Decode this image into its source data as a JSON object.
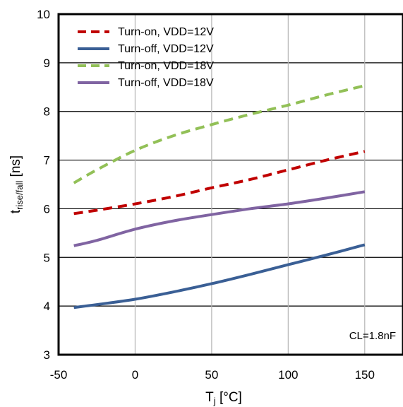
{
  "chart_data": {
    "type": "line",
    "title": "",
    "xlabel": "T",
    "xlabel_sub": "j",
    "xlabel_unit": " [°C]",
    "ylabel": "t",
    "ylabel_sub": "rise/fall",
    "ylabel_unit": " [ns]",
    "xlim": [
      -50,
      175
    ],
    "ylim": [
      3,
      10
    ],
    "xticks": [
      -50,
      0,
      50,
      100,
      150
    ],
    "yticks": [
      3,
      4,
      5,
      6,
      7,
      8,
      9,
      10
    ],
    "grid": true,
    "legend_position": "top-left",
    "annotation": "CL=1.8nF",
    "x": [
      -40,
      -25,
      0,
      25,
      50,
      75,
      100,
      125,
      150
    ],
    "series": [
      {
        "name": "Turn-on, VDD=12V",
        "color": "#c00000",
        "dash": true,
        "values": [
          5.9,
          5.97,
          6.1,
          6.25,
          6.43,
          6.6,
          6.8,
          7.0,
          7.18
        ]
      },
      {
        "name": "Turn-off, VDD=12V",
        "color": "#3a5f95",
        "dash": false,
        "values": [
          3.97,
          4.03,
          4.14,
          4.29,
          4.46,
          4.65,
          4.85,
          5.05,
          5.26
        ]
      },
      {
        "name": "Turn-on, VDD=18V",
        "color": "#92c057",
        "dash": true,
        "values": [
          6.53,
          6.8,
          7.2,
          7.5,
          7.73,
          7.94,
          8.13,
          8.34,
          8.53
        ]
      },
      {
        "name": "Turn-off, VDD=18V",
        "color": "#8064a2",
        "dash": false,
        "values": [
          5.24,
          5.35,
          5.58,
          5.75,
          5.88,
          6.0,
          6.1,
          6.22,
          6.35
        ]
      }
    ]
  }
}
